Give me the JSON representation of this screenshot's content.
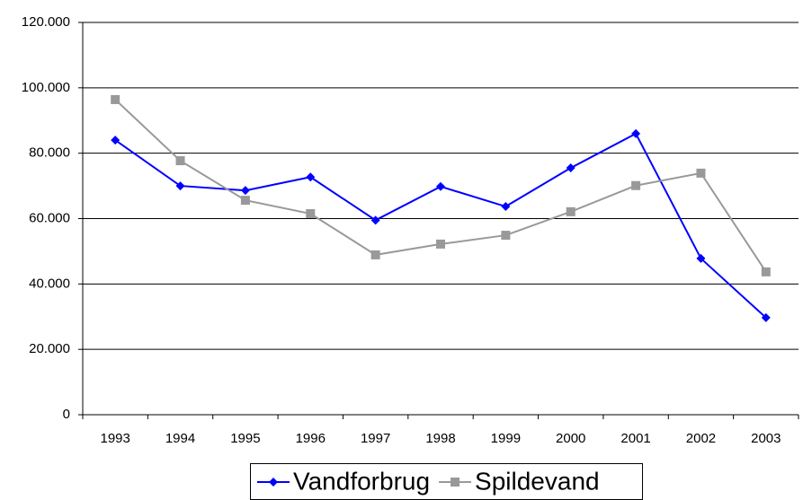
{
  "chart_data": {
    "type": "line",
    "categories": [
      "1993",
      "1994",
      "1995",
      "1996",
      "1997",
      "1998",
      "1999",
      "2000",
      "2001",
      "2002",
      "2003"
    ],
    "series": [
      {
        "name": "Vandforbrug",
        "color": "#0000ff",
        "marker": "diamond",
        "values": [
          84000,
          70000,
          68600,
          72700,
          59500,
          69800,
          63700,
          75500,
          86000,
          47800,
          29700
        ]
      },
      {
        "name": "Spildevand",
        "color": "#999999",
        "marker": "square",
        "values": [
          96400,
          77700,
          65600,
          61500,
          48900,
          52200,
          54900,
          62100,
          70100,
          73900,
          43700
        ]
      }
    ],
    "ylim": [
      0,
      120000
    ],
    "yticks": [
      0,
      {
        "value": 20000,
        "label": "20.000"
      },
      {
        "value": 40000,
        "label": "40.000"
      },
      {
        "value": 60000,
        "label": "60.000"
      },
      {
        "value": 80000,
        "label": "80.000"
      },
      {
        "value": 100000,
        "label": "100.000"
      },
      {
        "value": 120000,
        "label": "120.000"
      }
    ],
    "grid": true,
    "legend": "bottom"
  }
}
